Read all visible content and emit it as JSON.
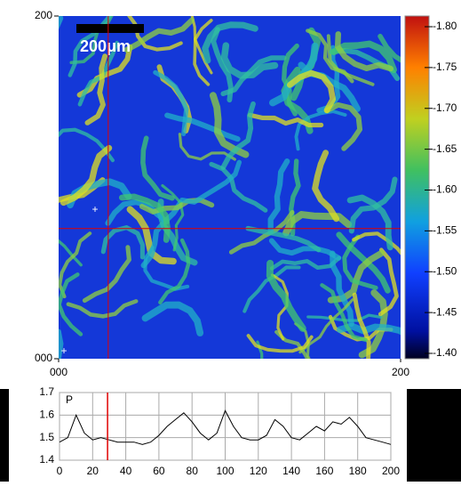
{
  "chart_data": [
    {
      "type": "heatmap",
      "xlim": [
        0,
        200
      ],
      "ylim": [
        0,
        200
      ],
      "xticks": [
        {
          "value": 0,
          "label": "000"
        },
        200
      ],
      "yticks": [
        {
          "value": 0,
          "label": "000"
        },
        200
      ],
      "scale_bar": "200μm",
      "cursor": {
        "x": 29,
        "y": 76
      },
      "colorbar": {
        "lim": [
          -1.4,
          -1.8
        ],
        "ticks": [
          {
            "value": -1.8,
            "label": "-1.80"
          },
          -1.75,
          {
            "value": -1.7,
            "label": "-1.70"
          },
          -1.65,
          {
            "value": -1.6,
            "label": "-1.60"
          },
          -1.55,
          {
            "value": -1.5,
            "label": "-1.50"
          },
          -1.45,
          {
            "value": -1.4,
            "label": "-1.40"
          }
        ]
      }
    },
    {
      "type": "line",
      "title": "P",
      "x": [
        0,
        5,
        10,
        15,
        20,
        25,
        30,
        35,
        40,
        45,
        50,
        55,
        60,
        65,
        70,
        75,
        80,
        85,
        90,
        95,
        100,
        105,
        110,
        115,
        120,
        125,
        130,
        135,
        140,
        145,
        150,
        155,
        160,
        165,
        170,
        175,
        180,
        185,
        190,
        195,
        200
      ],
      "series": [
        {
          "color": "#000000",
          "values": [
            1.48,
            1.5,
            1.6,
            1.52,
            1.49,
            1.5,
            1.49,
            1.48,
            1.48,
            1.48,
            1.47,
            1.48,
            1.51,
            1.55,
            1.58,
            1.61,
            1.57,
            1.52,
            1.49,
            1.52,
            1.62,
            1.55,
            1.5,
            1.49,
            1.49,
            1.51,
            1.58,
            1.55,
            1.5,
            1.49,
            1.52,
            1.55,
            1.53,
            1.57,
            1.56,
            1.59,
            1.55,
            1.5,
            1.49,
            1.48,
            1.47
          ]
        }
      ],
      "xlim": [
        0,
        200
      ],
      "ylim": [
        1.4,
        1.7
      ],
      "xticks": [
        0,
        20,
        40,
        60,
        80,
        100,
        120,
        140,
        160,
        180,
        200
      ],
      "yticks": [
        1.4,
        1.5,
        1.6,
        1.7
      ],
      "cursor_x": 29,
      "cursor_color": "#e00000",
      "grid": true
    }
  ]
}
